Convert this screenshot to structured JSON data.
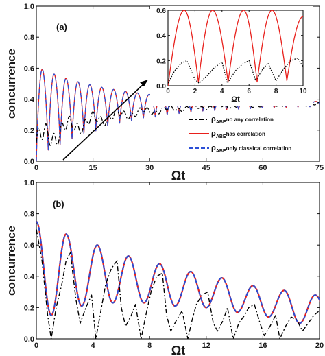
{
  "chart_data": [
    {
      "type": "line",
      "panel": "(a)",
      "xlabel": "Ωt",
      "ylabel": "concurrence",
      "xlim": [
        0,
        75
      ],
      "ylim": [
        0.0,
        1.0
      ],
      "xticks": [
        "0",
        "15",
        "30",
        "45",
        "60",
        "75"
      ],
      "yticks": [
        "0.0",
        "0.2",
        "0.4",
        "0.6",
        "0.8",
        "1.0"
      ],
      "legend_position": "lower-right",
      "series": [
        {
          "name_symbol": "ρ",
          "name_sub": "ABE",
          "name_text": "no any correlation",
          "color": "#000000",
          "style": "dash-dot",
          "model": {
            "mean_start": 0.12,
            "mean_end": 0.37,
            "amp_start": 0.12,
            "amp_end": 0.01,
            "tau": 18,
            "period": 3.15
          }
        },
        {
          "name_symbol": "ρ",
          "name_sub": "ABE",
          "name_text": "has correlation",
          "color": "#e8201c",
          "style": "solid",
          "model": {
            "peak_start": 0.61,
            "peak_end": 0.38,
            "trough_start": 0.0,
            "trough_end": 0.36,
            "tau": 20,
            "period": 3.15
          }
        },
        {
          "name_symbol": "ρ",
          "name_sub": "ABE",
          "name_text": "only classical correlation",
          "color": "#2b4fd6",
          "style": "dashed",
          "model": {
            "same_as": "has correlation"
          }
        }
      ],
      "inset": {
        "xlim": [
          0,
          10
        ],
        "ylim": [
          0.0,
          0.6
        ],
        "xticks": [
          "0",
          "2",
          "4",
          "6",
          "8",
          "10"
        ],
        "yticks": [
          "0.0",
          "0.2",
          "0.4",
          "0.6"
        ],
        "xlabel": "Ωt",
        "series": [
          {
            "color": "#e8201c",
            "style": "solid",
            "x": [
              0,
              1.2,
              2.25,
              3.3,
              4.45,
              5.6,
              6.6,
              7.7,
              8.8,
              10
            ],
            "y": [
              0.0,
              0.6,
              0.03,
              0.6,
              0.03,
              0.6,
              0.03,
              0.6,
              0.04,
              0.55
            ]
          },
          {
            "color": "#000000",
            "style": "dotted",
            "x": [
              0,
              0.5,
              1.0,
              1.4,
              2.0,
              2.3,
              2.9,
              3.4,
              4.0,
              4.4,
              5.0,
              5.5,
              6.0,
              6.5,
              7.0,
              7.4,
              8.0,
              8.6,
              9.1,
              9.6,
              10
            ],
            "y": [
              0.02,
              0.12,
              0.18,
              0.2,
              0.05,
              0.02,
              0.08,
              0.14,
              0.19,
              0.02,
              0.12,
              0.17,
              0.2,
              0.04,
              0.13,
              0.18,
              0.04,
              0.14,
              0.2,
              0.22,
              0.15
            ]
          }
        ]
      }
    },
    {
      "type": "line",
      "panel": "(b)",
      "xlabel": "Ωt",
      "ylabel": "concurrence",
      "xlim": [
        0,
        20
      ],
      "ylim": [
        0.0,
        1.0
      ],
      "xticks": [
        "0",
        "4",
        "8",
        "12",
        "16",
        "20"
      ],
      "yticks": [
        "0.0",
        "0.2",
        "0.4",
        "0.6",
        "0.8",
        "1.0"
      ],
      "series": [
        {
          "name": "has correlation",
          "color": "#e8201c",
          "style": "solid",
          "peaks_x": [
            0,
            2.1,
            4.3,
            6.5,
            8.7,
            10.9,
            13.1,
            15.3,
            17.5,
            19.7
          ],
          "peaks_y": [
            0.75,
            0.67,
            0.6,
            0.53,
            0.48,
            0.43,
            0.39,
            0.34,
            0.31,
            0.28
          ],
          "troughs_x": [
            1.05,
            3.2,
            5.4,
            7.6,
            9.8,
            12.0,
            14.2,
            16.4,
            18.6
          ],
          "troughs_y": [
            0.15,
            0.21,
            0.23,
            0.23,
            0.21,
            0.2,
            0.17,
            0.14,
            0.1
          ]
        },
        {
          "name": "only classical correlation",
          "color": "#2b4fd6",
          "style": "dashed",
          "same_as": "has correlation"
        },
        {
          "name": "no any correlation",
          "color": "#000000",
          "style": "dash-dot",
          "x": [
            0,
            0.4,
            0.8,
            1.05,
            1.4,
            1.8,
            2.1,
            2.4,
            2.8,
            3.1,
            3.5,
            3.9,
            4.2,
            4.6,
            4.9,
            5.3,
            5.7,
            6.0,
            6.3,
            6.7,
            7.0,
            7.4,
            7.8,
            8.1,
            8.5,
            8.9,
            9.2,
            9.5,
            9.9,
            10.3,
            10.7,
            11.0,
            11.3,
            11.7,
            12.1,
            12.5,
            12.8,
            13.2,
            13.5,
            13.9,
            14.3,
            14.7,
            15.0,
            15.4,
            15.8,
            16.1,
            16.5,
            16.9,
            17.2,
            17.6,
            18.0,
            18.4,
            18.8,
            19.2,
            19.6,
            20
          ],
          "y": [
            0.7,
            0.5,
            0.15,
            0.0,
            0.2,
            0.35,
            0.5,
            0.55,
            0.25,
            0.1,
            0.2,
            0.28,
            0.0,
            0.2,
            0.35,
            0.45,
            0.5,
            0.2,
            0.08,
            0.15,
            0.22,
            0.0,
            0.18,
            0.3,
            0.4,
            0.42,
            0.15,
            0.05,
            0.12,
            0.18,
            0.0,
            0.12,
            0.22,
            0.28,
            0.3,
            0.1,
            0.05,
            0.12,
            0.2,
            0.0,
            0.1,
            0.15,
            0.2,
            0.22,
            0.1,
            0.02,
            0.08,
            0.15,
            0.0,
            0.08,
            0.14,
            0.12,
            0.05,
            0.1,
            0.15,
            0.18
          ]
        }
      ]
    }
  ]
}
